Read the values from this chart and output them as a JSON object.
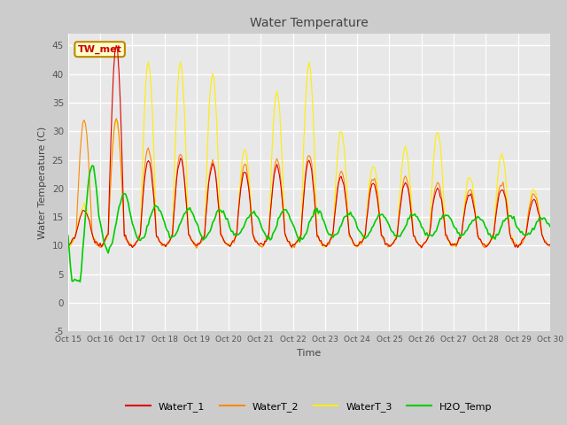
{
  "title": "Water Temperature",
  "xlabel": "Time",
  "ylabel": "Water Temperature (C)",
  "ylim": [
    -5,
    47
  ],
  "yticks": [
    -5,
    0,
    5,
    10,
    15,
    20,
    25,
    30,
    35,
    40,
    45
  ],
  "annotation_text": "TW_met",
  "annotation_color": "#cc0000",
  "annotation_bg": "#ffffcc",
  "annotation_border": "#bb8800",
  "colors": {
    "WaterT_1": "#dd0000",
    "WaterT_2": "#ff8800",
    "WaterT_3": "#ffee00",
    "H2O_Temp": "#00cc00"
  },
  "fig_bg": "#cccccc",
  "plot_bg": "#e8e8e8",
  "title_color": "#444444",
  "x_tick_labels": [
    "Oct 15",
    "Oct 16",
    "Oct 17",
    "Oct 18",
    "Oct 19",
    "Oct 20",
    "Oct 21",
    "Oct 22",
    "Oct 23",
    "Oct 24",
    "Oct 25",
    "Oct 26",
    "Oct 27",
    "Oct 28",
    "Oct 29",
    "Oct 30"
  ],
  "legend_entries": [
    "WaterT_1",
    "WaterT_2",
    "WaterT_3",
    "H2O_Temp"
  ]
}
